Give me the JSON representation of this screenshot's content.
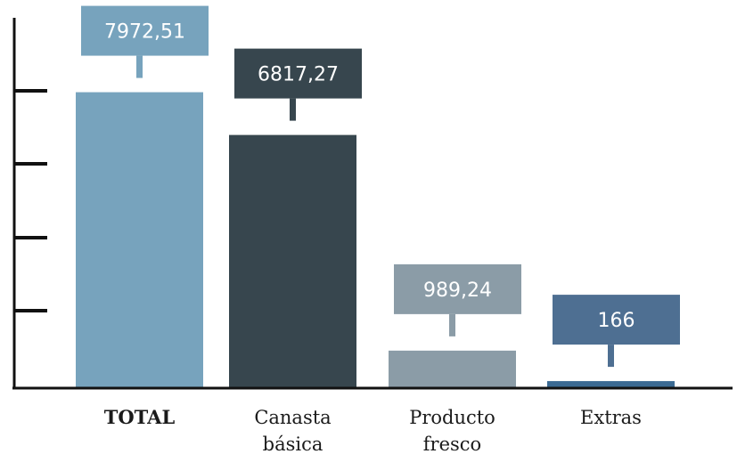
{
  "chart_data": {
    "type": "bar",
    "categories": [
      [
        "TOTAL"
      ],
      [
        "Canasta",
        "básica"
      ],
      [
        "Producto",
        "fresco"
      ],
      [
        "Extras"
      ]
    ],
    "bold_categories": [
      true,
      false,
      false,
      false
    ],
    "values": [
      7972.51,
      6817.27,
      989.24,
      166
    ],
    "value_labels": [
      "7972,51",
      "6817,27",
      "989,24",
      "166"
    ],
    "colors": [
      "#77a3bd",
      "#37464e",
      "#8b9ca7",
      "#3b6a93"
    ],
    "label_box_colors": [
      "#77a3bd",
      "#37464e",
      "#8b9ca7",
      "#4e6f92"
    ],
    "ylim": [
      0,
      8000
    ],
    "y_tick_count": 4,
    "grid": false,
    "title": "",
    "xlabel": "",
    "ylabel": ""
  }
}
